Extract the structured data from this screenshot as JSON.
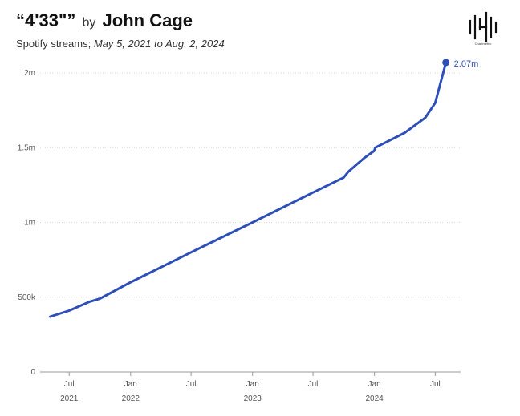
{
  "header": {
    "song": "“4'33\"”",
    "by": "by",
    "artist": "John Cage",
    "subtitle_prefix": "Spotify streams;",
    "subtitle_dates": "May 5, 2021 to Aug. 2, 2024"
  },
  "logo": {
    "text": "Chartmetric"
  },
  "chart_data": {
    "type": "line",
    "title": "“4'33\"” by John Cage",
    "subtitle": "Spotify streams; May 5, 2021 to Aug. 2, 2024",
    "xlabel": "",
    "ylabel": "",
    "x_range": [
      "2021-04-05",
      "2024-09-15"
    ],
    "ylim": [
      0,
      2000000
    ],
    "grid": true,
    "y_ticks": [
      {
        "value": 0,
        "label": "0"
      },
      {
        "value": 500000,
        "label": "500k"
      },
      {
        "value": 1000000,
        "label": "1m"
      },
      {
        "value": 1500000,
        "label": "1.5m"
      },
      {
        "value": 2000000,
        "label": "2m"
      }
    ],
    "x_ticks": [
      {
        "date": "2021-07-01",
        "label": "Jul",
        "year": "2021"
      },
      {
        "date": "2022-01-01",
        "label": "Jan",
        "year": "2022"
      },
      {
        "date": "2022-07-01",
        "label": "Jul",
        "year": ""
      },
      {
        "date": "2023-01-01",
        "label": "Jan",
        "year": "2023"
      },
      {
        "date": "2023-07-01",
        "label": "Jul",
        "year": ""
      },
      {
        "date": "2024-01-01",
        "label": "Jan",
        "year": "2024"
      },
      {
        "date": "2024-07-01",
        "label": "Jul",
        "year": ""
      }
    ],
    "series": [
      {
        "name": "Spotify streams",
        "color": "#2e4fb8",
        "points": [
          [
            "2021-05-05",
            370000
          ],
          [
            "2021-07-01",
            410000
          ],
          [
            "2021-09-01",
            470000
          ],
          [
            "2021-10-01",
            490000
          ],
          [
            "2022-01-01",
            600000
          ],
          [
            "2022-07-01",
            800000
          ],
          [
            "2023-01-01",
            1000000
          ],
          [
            "2023-07-01",
            1200000
          ],
          [
            "2023-10-01",
            1300000
          ],
          [
            "2023-10-15",
            1340000
          ],
          [
            "2023-12-01",
            1430000
          ],
          [
            "2024-01-01",
            1480000
          ],
          [
            "2024-01-03",
            1500000
          ],
          [
            "2024-04-01",
            1600000
          ],
          [
            "2024-06-01",
            1700000
          ],
          [
            "2024-07-01",
            1800000
          ],
          [
            "2024-08-02",
            2070000
          ]
        ]
      }
    ],
    "end_label": "2.07m"
  }
}
